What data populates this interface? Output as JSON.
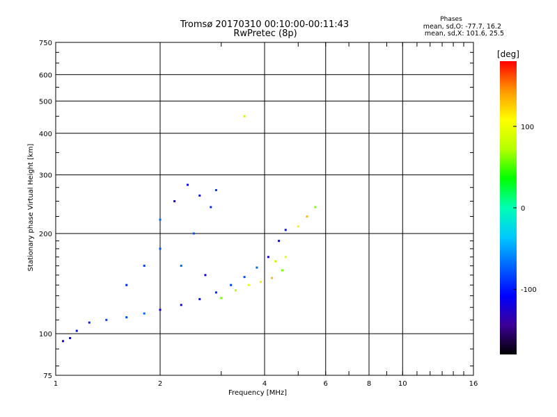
{
  "title": "Tromsø 20170310 00:10:00-00:11:43",
  "subtitle": "RwPretec (8p)",
  "phases": {
    "heading": "Phases",
    "o_line": "mean, sd,O: -77.7, 16.2",
    "x_line": "mean, sd,X: 101.6, 25.5"
  },
  "chart_data": {
    "type": "scatter",
    "title": "Tromsø 20170310 00:10:00-00:11:43",
    "subtitle": "RwPretec (8p)",
    "xlabel": "Frequency [MHz]",
    "ylabel": "Stationary phase Virtual Height [km]",
    "x_scale": "log",
    "y_scale": "log",
    "xlim": [
      1,
      16
    ],
    "ylim": [
      75,
      750
    ],
    "x_ticks": [
      1,
      2,
      4,
      6,
      8,
      10,
      16
    ],
    "x_tick_labels": [
      "1",
      "2",
      "4",
      "6",
      "8",
      "10",
      "16"
    ],
    "y_ticks": [
      75,
      100,
      200,
      300,
      400,
      500,
      600,
      750
    ],
    "y_tick_labels": [
      "75",
      "100",
      "200",
      "300",
      "400",
      "500",
      "600",
      "750"
    ],
    "grid": true,
    "colorbar": {
      "label": "[deg]",
      "range": [
        -180,
        180
      ],
      "ticks": [
        -100,
        0,
        100
      ],
      "tick_labels": [
        "-100",
        "0",
        "100"
      ],
      "colors": [
        "#000000",
        "#3c0096",
        "#0000ff",
        "#0064ff",
        "#00c8ff",
        "#00ffb4",
        "#00ff00",
        "#b4ff00",
        "#ffff00",
        "#ff9600",
        "#ff0000"
      ]
    },
    "series": [
      {
        "name": "O",
        "values": [
          {
            "x": 1.05,
            "y": 95
          },
          {
            "x": 1.1,
            "y": 97
          },
          {
            "x": 1.15,
            "y": 102
          },
          {
            "x": 1.25,
            "y": 108
          },
          {
            "x": 1.4,
            "y": 110
          },
          {
            "x": 1.6,
            "y": 112
          },
          {
            "x": 1.8,
            "y": 115
          },
          {
            "x": 2.0,
            "y": 118
          },
          {
            "x": 2.3,
            "y": 122
          },
          {
            "x": 2.6,
            "y": 127
          },
          {
            "x": 2.9,
            "y": 133
          },
          {
            "x": 3.2,
            "y": 140
          },
          {
            "x": 3.5,
            "y": 148
          },
          {
            "x": 3.8,
            "y": 158
          },
          {
            "x": 4.1,
            "y": 170
          },
          {
            "x": 4.4,
            "y": 190
          },
          {
            "x": 4.6,
            "y": 205
          },
          {
            "x": 1.6,
            "y": 140
          },
          {
            "x": 1.8,
            "y": 160
          },
          {
            "x": 2.0,
            "y": 180
          },
          {
            "x": 2.0,
            "y": 220
          },
          {
            "x": 2.2,
            "y": 250
          },
          {
            "x": 2.4,
            "y": 280
          },
          {
            "x": 2.6,
            "y": 260
          },
          {
            "x": 2.8,
            "y": 240
          },
          {
            "x": 2.9,
            "y": 270
          },
          {
            "x": 2.5,
            "y": 200
          },
          {
            "x": 2.3,
            "y": 160
          },
          {
            "x": 2.7,
            "y": 150
          }
        ]
      },
      {
        "name": "X",
        "values": [
          {
            "x": 3.0,
            "y": 128
          },
          {
            "x": 3.3,
            "y": 135
          },
          {
            "x": 3.6,
            "y": 140
          },
          {
            "x": 3.9,
            "y": 143
          },
          {
            "x": 4.2,
            "y": 147
          },
          {
            "x": 4.5,
            "y": 155
          },
          {
            "x": 4.3,
            "y": 165
          },
          {
            "x": 4.6,
            "y": 170
          },
          {
            "x": 5.0,
            "y": 210
          },
          {
            "x": 5.3,
            "y": 225
          },
          {
            "x": 5.6,
            "y": 240
          },
          {
            "x": 3.5,
            "y": 450
          }
        ]
      }
    ]
  }
}
